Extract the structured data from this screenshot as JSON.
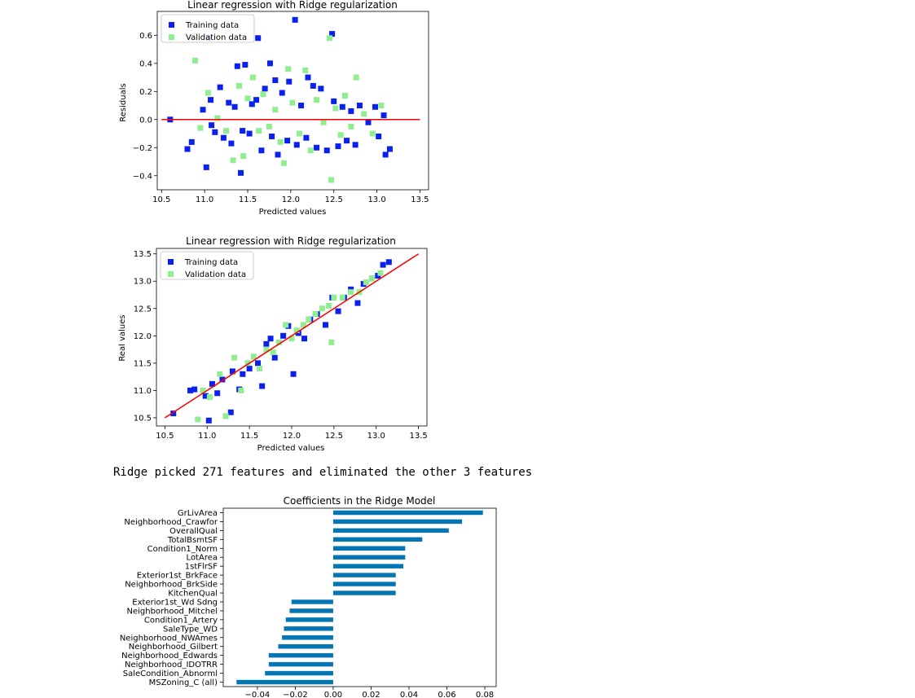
{
  "output_text": "Ridge picked 271 features and eliminated the other 3 features",
  "colors": {
    "training": "#0a20ee",
    "validation": "#90ee90",
    "line": "#ff0000",
    "bar": "#0476b4"
  },
  "chart_data": [
    {
      "type": "scatter",
      "title": "Linear regression with Ridge regularization",
      "xlabel": "Predicted values",
      "ylabel": "Residuals",
      "xlim": [
        10.45,
        13.6
      ],
      "ylim": [
        -0.5,
        0.77
      ],
      "xticks": [
        "10.5",
        "11.0",
        "11.5",
        "12.0",
        "12.5",
        "13.0",
        "13.5"
      ],
      "yticks": [
        "−0.4",
        "−0.2",
        "0.0",
        "0.2",
        "0.4",
        "0.6"
      ],
      "legend": [
        "Training data",
        "Validation data"
      ],
      "legend_position": "upper-left",
      "reference_line": {
        "from": [
          10.5,
          0.0
        ],
        "to": [
          13.5,
          0.0
        ]
      },
      "series": [
        {
          "name": "Training data",
          "values": [
            [
              10.6,
              0.0
            ],
            [
              10.8,
              -0.21
            ],
            [
              10.85,
              -0.16
            ],
            [
              10.98,
              0.07
            ],
            [
              11.02,
              -0.34
            ],
            [
              11.05,
              0.58
            ],
            [
              11.07,
              0.14
            ],
            [
              11.08,
              -0.04
            ],
            [
              11.12,
              -0.09
            ],
            [
              11.18,
              0.23
            ],
            [
              11.22,
              -0.13
            ],
            [
              11.28,
              0.12
            ],
            [
              11.31,
              -0.17
            ],
            [
              11.35,
              0.09
            ],
            [
              11.38,
              0.38
            ],
            [
              11.42,
              -0.38
            ],
            [
              11.44,
              -0.08
            ],
            [
              11.47,
              0.39
            ],
            [
              11.52,
              -0.1
            ],
            [
              11.55,
              0.11
            ],
            [
              11.6,
              0.14
            ],
            [
              11.62,
              0.58
            ],
            [
              11.66,
              -0.22
            ],
            [
              11.7,
              0.22
            ],
            [
              11.76,
              0.4
            ],
            [
              11.78,
              -0.12
            ],
            [
              11.82,
              0.28
            ],
            [
              11.85,
              -0.25
            ],
            [
              11.9,
              0.19
            ],
            [
              11.96,
              -0.15
            ],
            [
              11.98,
              0.27
            ],
            [
              12.05,
              0.71
            ],
            [
              12.07,
              -0.18
            ],
            [
              12.12,
              0.1
            ],
            [
              12.18,
              -0.13
            ],
            [
              12.2,
              0.3
            ],
            [
              12.26,
              0.24
            ],
            [
              12.3,
              -0.2
            ],
            [
              12.35,
              0.22
            ],
            [
              12.42,
              -0.22
            ],
            [
              12.48,
              0.61
            ],
            [
              12.5,
              0.13
            ],
            [
              12.55,
              -0.19
            ],
            [
              12.6,
              0.09
            ],
            [
              12.65,
              -0.15
            ],
            [
              12.7,
              0.06
            ],
            [
              12.75,
              -0.18
            ],
            [
              12.8,
              0.1
            ],
            [
              12.9,
              -0.02
            ],
            [
              12.98,
              0.09
            ],
            [
              13.02,
              -0.12
            ],
            [
              13.08,
              0.03
            ],
            [
              13.1,
              -0.25
            ],
            [
              13.15,
              -0.21
            ]
          ]
        },
        {
          "name": "Validation data",
          "values": [
            [
              10.89,
              0.42
            ],
            [
              10.95,
              -0.06
            ],
            [
              11.04,
              0.19
            ],
            [
              11.15,
              0.01
            ],
            [
              11.25,
              -0.08
            ],
            [
              11.33,
              -0.29
            ],
            [
              11.4,
              0.24
            ],
            [
              11.45,
              -0.26
            ],
            [
              11.5,
              0.15
            ],
            [
              11.56,
              0.3
            ],
            [
              11.63,
              -0.08
            ],
            [
              11.68,
              0.18
            ],
            [
              11.75,
              -0.05
            ],
            [
              11.82,
              0.07
            ],
            [
              11.88,
              -0.16
            ],
            [
              11.92,
              -0.31
            ],
            [
              11.97,
              0.36
            ],
            [
              12.02,
              0.12
            ],
            [
              12.1,
              -0.1
            ],
            [
              12.17,
              0.35
            ],
            [
              12.23,
              -0.22
            ],
            [
              12.3,
              0.14
            ],
            [
              12.38,
              -0.02
            ],
            [
              12.45,
              0.58
            ],
            [
              12.47,
              -0.43
            ],
            [
              12.52,
              0.08
            ],
            [
              12.58,
              -0.11
            ],
            [
              12.63,
              0.17
            ],
            [
              12.7,
              -0.05
            ],
            [
              12.76,
              0.3
            ],
            [
              12.85,
              0.04
            ],
            [
              12.95,
              -0.1
            ],
            [
              13.05,
              0.1
            ]
          ]
        }
      ]
    },
    {
      "type": "scatter",
      "title": "Linear regression with Ridge regularization",
      "xlabel": "Predicted values",
      "ylabel": "Real values",
      "xlim": [
        10.4,
        13.6
      ],
      "ylim": [
        10.35,
        13.6
      ],
      "xticks": [
        "10.5",
        "11.0",
        "11.5",
        "12.0",
        "12.5",
        "13.0",
        "13.5"
      ],
      "yticks": [
        "10.5",
        "11.0",
        "11.5",
        "12.0",
        "12.5",
        "13.0",
        "13.5"
      ],
      "legend": [
        "Training data",
        "Validation data"
      ],
      "legend_position": "upper-left",
      "reference_line": {
        "from": [
          10.5,
          10.5
        ],
        "to": [
          13.5,
          13.5
        ]
      },
      "series": [
        {
          "name": "Training data",
          "values": [
            [
              10.6,
              10.58
            ],
            [
              10.8,
              11.0
            ],
            [
              10.85,
              11.02
            ],
            [
              10.98,
              10.9
            ],
            [
              11.02,
              10.45
            ],
            [
              11.06,
              11.12
            ],
            [
              11.12,
              10.95
            ],
            [
              11.18,
              11.2
            ],
            [
              11.28,
              10.6
            ],
            [
              11.3,
              11.35
            ],
            [
              11.38,
              11.02
            ],
            [
              11.42,
              11.3
            ],
            [
              11.5,
              11.4
            ],
            [
              11.6,
              11.5
            ],
            [
              11.65,
              11.08
            ],
            [
              11.7,
              11.85
            ],
            [
              11.75,
              11.95
            ],
            [
              11.8,
              11.6
            ],
            [
              11.9,
              12.0
            ],
            [
              11.96,
              12.18
            ],
            [
              12.02,
              11.3
            ],
            [
              12.08,
              12.05
            ],
            [
              12.15,
              11.95
            ],
            [
              12.22,
              12.3
            ],
            [
              12.3,
              12.4
            ],
            [
              12.4,
              12.2
            ],
            [
              12.48,
              12.7
            ],
            [
              12.55,
              12.45
            ],
            [
              12.62,
              12.7
            ],
            [
              12.7,
              12.85
            ],
            [
              12.78,
              12.6
            ],
            [
              12.85,
              12.95
            ],
            [
              12.95,
              13.05
            ],
            [
              13.02,
              13.1
            ],
            [
              13.08,
              13.3
            ],
            [
              13.15,
              13.35
            ]
          ]
        },
        {
          "name": "Validation data",
          "values": [
            [
              10.89,
              10.47
            ],
            [
              10.95,
              11.0
            ],
            [
              11.03,
              10.88
            ],
            [
              11.15,
              11.3
            ],
            [
              11.22,
              10.53
            ],
            [
              11.32,
              11.6
            ],
            [
              11.4,
              11.0
            ],
            [
              11.48,
              11.5
            ],
            [
              11.55,
              11.62
            ],
            [
              11.62,
              11.4
            ],
            [
              11.7,
              11.75
            ],
            [
              11.78,
              11.7
            ],
            [
              11.85,
              11.88
            ],
            [
              11.93,
              12.2
            ],
            [
              12.0,
              11.95
            ],
            [
              12.06,
              12.1
            ],
            [
              12.14,
              12.2
            ],
            [
              12.2,
              12.3
            ],
            [
              12.28,
              12.4
            ],
            [
              12.36,
              12.5
            ],
            [
              12.44,
              12.55
            ],
            [
              12.47,
              11.88
            ],
            [
              12.5,
              12.7
            ],
            [
              12.6,
              12.7
            ],
            [
              12.7,
              12.8
            ],
            [
              12.8,
              12.8
            ],
            [
              12.88,
              12.98
            ],
            [
              12.95,
              13.05
            ],
            [
              13.05,
              13.15
            ]
          ]
        }
      ]
    },
    {
      "type": "bar",
      "orientation": "horizontal",
      "title": "Coefficients in the Ridge Model",
      "xlim": [
        -0.058,
        0.086
      ],
      "xticks": [
        -0.04,
        -0.02,
        0.0,
        0.02,
        0.04,
        0.06,
        0.08
      ],
      "xtick_labels": [
        "−0.04",
        "−0.02",
        "0.00",
        "0.02",
        "0.04",
        "0.06",
        "0.08"
      ],
      "categories": [
        "GrLivArea",
        "Neighborhood_Crawfor",
        "OverallQual",
        "TotalBsmtSF",
        "Condition1_Norm",
        "LotArea",
        "1stFlrSF",
        "Exterior1st_BrkFace",
        "Neighborhood_BrkSide",
        "KitchenQual",
        "Exterior1st_Wd Sdng",
        "Neighborhood_Mitchel",
        "Condition1_Artery",
        "SaleType_WD",
        "Neighborhood_NWAmes",
        "Neighborhood_Gilbert",
        "Neighborhood_Edwards",
        "Neighborhood_IDOTRR",
        "SaleCondition_Abnorml",
        "MSZoning_C (all)"
      ],
      "values": [
        0.079,
        0.068,
        0.061,
        0.047,
        0.038,
        0.038,
        0.037,
        0.033,
        0.033,
        0.033,
        -0.022,
        -0.023,
        -0.025,
        -0.026,
        -0.027,
        -0.029,
        -0.034,
        -0.034,
        -0.036,
        -0.051
      ]
    }
  ]
}
